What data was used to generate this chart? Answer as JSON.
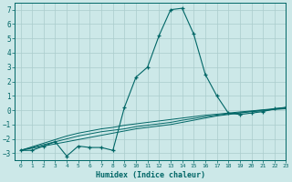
{
  "xlabel": "Humidex (Indice chaleur)",
  "background_color": "#cce8e8",
  "grid_color": "#aacccc",
  "line_color": "#006666",
  "xlim": [
    -0.5,
    23
  ],
  "ylim": [
    -3.5,
    7.5
  ],
  "yticks": [
    -3,
    -2,
    -1,
    0,
    1,
    2,
    3,
    4,
    5,
    6,
    7
  ],
  "xticks": [
    0,
    1,
    2,
    3,
    4,
    5,
    6,
    7,
    8,
    9,
    10,
    11,
    12,
    13,
    14,
    15,
    16,
    17,
    18,
    19,
    20,
    21,
    22,
    23
  ],
  "series_main": {
    "x": [
      0,
      1,
      2,
      3,
      4,
      5,
      6,
      7,
      8,
      9,
      10,
      11,
      12,
      13,
      14,
      15,
      16,
      17,
      18,
      19,
      20,
      21,
      22,
      23
    ],
    "y": [
      -2.8,
      -2.8,
      -2.5,
      -2.2,
      -3.2,
      -2.5,
      -2.6,
      -2.6,
      -2.8,
      0.2,
      2.3,
      3.0,
      5.2,
      7.0,
      7.1,
      5.3,
      2.5,
      1.0,
      -0.2,
      -0.3,
      -0.2,
      -0.1,
      0.1,
      0.2
    ]
  },
  "series_trend": [
    {
      "x": [
        0,
        1,
        2,
        3,
        4,
        5,
        6,
        7,
        8,
        9,
        10,
        11,
        12,
        13,
        14,
        15,
        16,
        17,
        18,
        19,
        20,
        21,
        22,
        23
      ],
      "y": [
        -2.8,
        -2.65,
        -2.5,
        -2.35,
        -2.2,
        -2.05,
        -1.9,
        -1.75,
        -1.6,
        -1.45,
        -1.3,
        -1.2,
        -1.1,
        -1.0,
        -0.85,
        -0.7,
        -0.55,
        -0.4,
        -0.3,
        -0.2,
        -0.1,
        -0.05,
        0.05,
        0.1
      ]
    },
    {
      "x": [
        0,
        1,
        2,
        3,
        4,
        5,
        6,
        7,
        8,
        9,
        10,
        11,
        12,
        13,
        14,
        15,
        16,
        17,
        18,
        19,
        20,
        21,
        22,
        23
      ],
      "y": [
        -2.8,
        -2.6,
        -2.4,
        -2.2,
        -2.0,
        -1.8,
        -1.65,
        -1.5,
        -1.4,
        -1.3,
        -1.15,
        -1.05,
        -0.95,
        -0.85,
        -0.7,
        -0.58,
        -0.45,
        -0.35,
        -0.25,
        -0.18,
        -0.08,
        0.0,
        0.08,
        0.15
      ]
    },
    {
      "x": [
        0,
        1,
        2,
        3,
        4,
        5,
        6,
        7,
        8,
        9,
        10,
        11,
        12,
        13,
        14,
        15,
        16,
        17,
        18,
        19,
        20,
        21,
        22,
        23
      ],
      "y": [
        -2.8,
        -2.55,
        -2.3,
        -2.05,
        -1.8,
        -1.6,
        -1.45,
        -1.3,
        -1.2,
        -1.05,
        -0.95,
        -0.85,
        -0.75,
        -0.65,
        -0.55,
        -0.45,
        -0.35,
        -0.28,
        -0.2,
        -0.12,
        -0.05,
        0.03,
        0.1,
        0.18
      ]
    }
  ]
}
